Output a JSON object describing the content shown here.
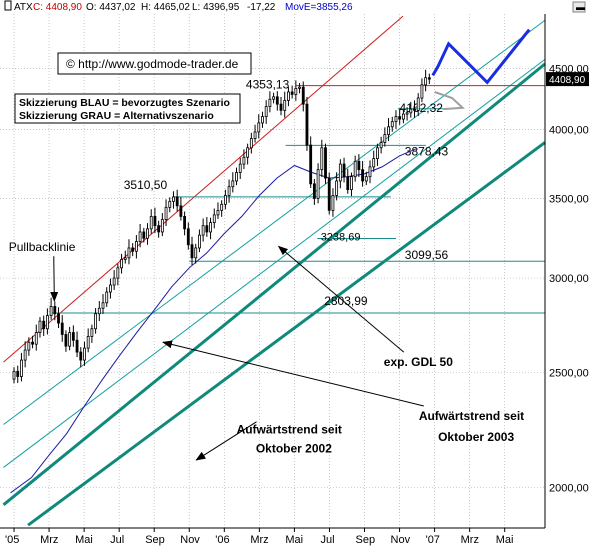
{
  "header": {
    "symbol": "ATX",
    "close": "C: 4408,90",
    "open": "O: 4437,02",
    "high": "H: 4465,02",
    "low": "L: 4396,95",
    "change": "-17,22",
    "ma": "MovE=3855,26"
  },
  "watermark": "© http://www.godmode-trader.de",
  "legend": {
    "line1": "Skizzierung BLAU = bevorzugtes Szenario",
    "line2": "Skizzierung GRAU = Alternativszenario"
  },
  "current_price_label": "4408,90",
  "colors": {
    "background": "#ffffff",
    "grid": "#b4b4b4",
    "candle": "#000000",
    "ma_line": "#1a1aa8",
    "upper_channel": "#d11e1e",
    "channel_thin": "#12a0a0",
    "trend_thick": "#0f8a7a",
    "horizontal_levels": "#1a8e8e",
    "resistance": "#d11e1e",
    "scenario_blue": "#1a2ee0",
    "scenario_gray": "#a0a0a0",
    "price_box": "#000000",
    "header_red": "#c40000",
    "header_blue": "#0000cc"
  },
  "chart_data": {
    "type": "candlestick",
    "title": "ATX",
    "y_scale": "log",
    "ylim": [
      1850,
      5000
    ],
    "y_ticks": [
      {
        "value": 2000,
        "label": "2000,00"
      },
      {
        "value": 2500,
        "label": "2500,00"
      },
      {
        "value": 3000,
        "label": "3000,00"
      },
      {
        "value": 3500,
        "label": "3500,00"
      },
      {
        "value": 4000,
        "label": "4000,00"
      },
      {
        "value": 4500,
        "label": "4500,00"
      }
    ],
    "x_ticks": [
      {
        "t": 0,
        "label": "'05"
      },
      {
        "t": 2,
        "label": "Mrz"
      },
      {
        "t": 4,
        "label": "Mai"
      },
      {
        "t": 6,
        "label": "Jul"
      },
      {
        "t": 8,
        "label": "Sep"
      },
      {
        "t": 10,
        "label": "Nov"
      },
      {
        "t": 12,
        "label": "'06"
      },
      {
        "t": 14,
        "label": "Mrz"
      },
      {
        "t": 16,
        "label": "Mai"
      },
      {
        "t": 18,
        "label": "Jul"
      },
      {
        "t": 20,
        "label": "Sep"
      },
      {
        "t": 22,
        "label": "Nov"
      },
      {
        "t": 24,
        "label": "'07"
      },
      {
        "t": 26,
        "label": "Mrz"
      },
      {
        "t": 28,
        "label": "Mai"
      }
    ],
    "x_range": [
      -0.8,
      30.3
    ],
    "weekly_closes": [
      2505,
      2480,
      2560,
      2610,
      2650,
      2640,
      2700,
      2760,
      2720,
      2790,
      2840,
      2800,
      2750,
      2690,
      2630,
      2700,
      2660,
      2600,
      2560,
      2620,
      2680,
      2720,
      2800,
      2830,
      2860,
      2920,
      2960,
      3000,
      3060,
      3110,
      3120,
      3180,
      3160,
      3220,
      3280,
      3240,
      3300,
      3380,
      3320,
      3280,
      3360,
      3440,
      3480,
      3510,
      3450,
      3380,
      3300,
      3200,
      3120,
      3180,
      3260,
      3320,
      3280,
      3340,
      3390,
      3420,
      3460,
      3520,
      3580,
      3620,
      3680,
      3740,
      3790,
      3860,
      3930,
      3980,
      4050,
      4100,
      4180,
      4240,
      4260,
      4200,
      4150,
      4230,
      4300,
      4280,
      4330,
      4340,
      4200,
      3880,
      3600,
      3500,
      3700,
      3860,
      3640,
      3420,
      3520,
      3620,
      3740,
      3650,
      3560,
      3650,
      3760,
      3700,
      3620,
      3650,
      3720,
      3780,
      3860,
      3900,
      3960,
      4020,
      4060,
      4100,
      4080,
      4120,
      4130,
      4160,
      4150,
      4250,
      4360,
      4420,
      4408
    ],
    "series": [
      {
        "name": "exp. GDL 50",
        "points": [
          [
            -0.2,
            1980
          ],
          [
            1,
            2040
          ],
          [
            2,
            2130
          ],
          [
            3,
            2220
          ],
          [
            4,
            2340
          ],
          [
            5,
            2460
          ],
          [
            6,
            2580
          ],
          [
            7,
            2700
          ],
          [
            8,
            2820
          ],
          [
            9,
            2950
          ],
          [
            10,
            3060
          ],
          [
            11,
            3150
          ],
          [
            12,
            3270
          ],
          [
            13,
            3380
          ],
          [
            14,
            3520
          ],
          [
            15,
            3640
          ],
          [
            16,
            3730
          ],
          [
            17,
            3680
          ],
          [
            18,
            3640
          ],
          [
            19,
            3650
          ],
          [
            20,
            3670
          ],
          [
            21,
            3720
          ],
          [
            22,
            3800
          ],
          [
            23,
            3856
          ]
        ]
      }
    ],
    "trend_lines": [
      {
        "role": "upper_channel",
        "from": [
          -0.6,
          2550
        ],
        "to": [
          22.2,
          4980
        ]
      },
      {
        "role": "channel_thin",
        "from": [
          -0.6,
          2260
        ],
        "to": [
          30.3,
          4940
        ]
      },
      {
        "role": "channel_thin",
        "from": [
          -0.6,
          2080
        ],
        "to": [
          30.3,
          4580
        ]
      },
      {
        "role": "trend_thick",
        "from": [
          -0.6,
          1935
        ],
        "to": [
          30.3,
          4540
        ]
      },
      {
        "role": "trend_thick",
        "from": [
          0.8,
          1860
        ],
        "to": [
          30.3,
          3900
        ]
      }
    ],
    "horizontal_levels": [
      {
        "value": 4353.13,
        "label": "4353,13",
        "from": 16.1,
        "to": 30.3,
        "role": "resistance"
      },
      {
        "value": 4162.32,
        "label": "4162,32",
        "from": 21.9,
        "to": 24.6
      },
      {
        "value": 3878.43,
        "label": "3878,43",
        "from": 15.5,
        "to": 23.5
      },
      {
        "value": 3510.5,
        "label": "3510,50",
        "from": 9.1,
        "to": 21.5
      },
      {
        "value": 3238.69,
        "label": "3238,69",
        "from": 17.3,
        "to": 21.8
      },
      {
        "value": 3099.56,
        "label": "3099,56",
        "from": 10.0,
        "to": 30.3
      },
      {
        "value": 2803.99,
        "label": "2803,99",
        "from": 2.2,
        "to": 30.3
      }
    ],
    "scenario_blue": [
      [
        23.9,
        4440
      ],
      [
        24.2,
        4520
      ],
      [
        24.8,
        4720
      ],
      [
        27.0,
        4380
      ],
      [
        29.4,
        4850
      ]
    ],
    "scenario_gray": [
      [
        24.0,
        4300
      ],
      [
        25.0,
        4250
      ],
      [
        25.6,
        4170
      ],
      [
        24.5,
        4160
      ]
    ],
    "annotations": [
      {
        "text": "Pullbacklinie",
        "at": [
          -0.3,
          3160
        ],
        "arrow_to": [
          2.3,
          2870
        ]
      },
      {
        "text": "exp. GDL 50",
        "at": [
          21.1,
          2530
        ],
        "arrow_to": [
          15.1,
          3190
        ]
      },
      {
        "text": "Aufwärtstrend seit",
        "at": [
          23.1,
          2280
        ],
        "arrow_to": [
          8.5,
          2650
        ]
      },
      {
        "text": "Oktober 2003",
        "at": [
          24.2,
          2190
        ]
      },
      {
        "text": "Aufwärtstrend seit",
        "at": [
          12.7,
          2220
        ],
        "arrow_to": [
          10.4,
          2110
        ]
      },
      {
        "text": "Oktober 2002",
        "at": [
          13.8,
          2140
        ]
      }
    ]
  }
}
